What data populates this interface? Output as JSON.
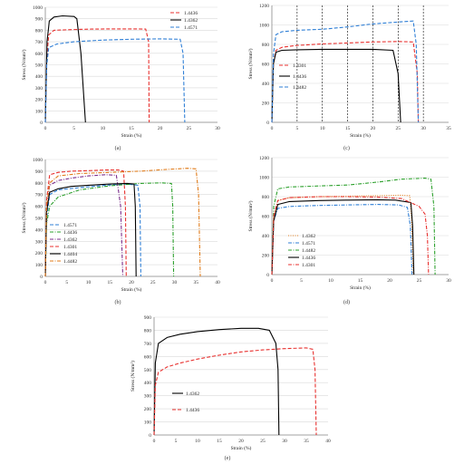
{
  "chart_data": [
    {
      "panel": "a",
      "type": "line",
      "caption": "(a)",
      "xlabel": "Strain (%)",
      "ylabel": "Stress (N/mm²)",
      "xlim": [
        0,
        30
      ],
      "ylim": [
        0,
        1000
      ],
      "xticks": [
        0,
        5,
        10,
        15,
        20,
        25,
        30
      ],
      "yticks": [
        0,
        100,
        200,
        300,
        400,
        500,
        600,
        700,
        800,
        900,
        1000
      ],
      "grid": "horizontal",
      "legend_position": "top-right",
      "series": [
        {
          "name": "1.4436",
          "color": "#e8312f",
          "dash": "dashed",
          "x": [
            0,
            0.25,
            0.6,
            1.5,
            4,
            8,
            12,
            16,
            17.5,
            18,
            18.1
          ],
          "y": [
            0,
            560,
            760,
            800,
            805,
            810,
            812,
            812,
            810,
            700,
            0
          ]
        },
        {
          "name": "1.4362",
          "color": "#000000",
          "dash": "solid",
          "x": [
            0,
            0.3,
            0.7,
            1.5,
            3,
            5,
            5.5,
            6.2,
            7
          ],
          "y": [
            0,
            700,
            880,
            915,
            925,
            920,
            900,
            600,
            0
          ]
        },
        {
          "name": "1.4571",
          "color": "#2f7fd6",
          "dash": "dashed",
          "x": [
            0,
            0.25,
            0.6,
            2,
            5,
            10,
            15,
            20,
            23.5,
            24,
            24.3
          ],
          "y": [
            0,
            500,
            650,
            680,
            700,
            715,
            722,
            725,
            722,
            600,
            0
          ]
        }
      ]
    },
    {
      "panel": "c",
      "type": "line",
      "caption": "(c)",
      "xlabel": "Strain (%)",
      "ylabel": "Stress (N/mm²)",
      "xlim": [
        0,
        35
      ],
      "ylim": [
        0,
        1200
      ],
      "xticks": [
        0,
        5,
        10,
        15,
        20,
        25,
        30,
        35
      ],
      "yticks": [
        0,
        200,
        400,
        600,
        800,
        1000,
        1200
      ],
      "grid": "horizontal",
      "vlines": [
        5,
        10,
        15,
        20,
        25,
        30
      ],
      "legend_position": "center-left",
      "series": [
        {
          "name": "1.4301",
          "color": "#e8312f",
          "dash": "dashed",
          "x": [
            0,
            0.3,
            0.8,
            2,
            5,
            10,
            15,
            20,
            25,
            28,
            28.8,
            29
          ],
          "y": [
            0,
            600,
            740,
            770,
            790,
            805,
            815,
            825,
            830,
            825,
            500,
            0
          ]
        },
        {
          "name": "1.4436",
          "color": "#000000",
          "dash": "solid",
          "x": [
            0,
            0.3,
            0.8,
            2,
            5,
            10,
            15,
            20,
            24,
            25,
            25.5
          ],
          "y": [
            0,
            600,
            720,
            740,
            745,
            750,
            750,
            750,
            740,
            500,
            0
          ]
        },
        {
          "name": "1.4482",
          "color": "#2f7fd6",
          "dash": "dashed",
          "x": [
            0,
            0.3,
            0.8,
            2,
            5,
            10,
            15,
            20,
            25,
            28,
            28.6,
            29
          ],
          "y": [
            0,
            700,
            900,
            930,
            945,
            955,
            980,
            1010,
            1030,
            1040,
            800,
            0
          ]
        }
      ]
    },
    {
      "panel": "b",
      "type": "line",
      "caption": "(b)",
      "xlabel": "Strain (%)",
      "ylabel": "Stress (N/mm²)",
      "xlim": [
        0,
        40
      ],
      "ylim": [
        0,
        1000
      ],
      "xticks": [
        0,
        5,
        10,
        15,
        20,
        25,
        30,
        35,
        40
      ],
      "yticks": [
        0,
        100,
        200,
        300,
        400,
        500,
        600,
        700,
        800,
        900,
        1000
      ],
      "grid": "horizontal",
      "legend_position": "center-left",
      "series": [
        {
          "name": "1.4571",
          "color": "#2f7fd6",
          "dash": "dashed",
          "x": [
            0,
            0.3,
            1,
            3,
            8,
            14,
            19,
            21.5,
            22,
            22.2
          ],
          "y": [
            0,
            500,
            700,
            740,
            760,
            780,
            790,
            780,
            600,
            0
          ]
        },
        {
          "name": "1.4436",
          "color": "#2ca02c",
          "dash": "dashdot",
          "x": [
            0,
            0.3,
            1,
            3,
            8,
            15,
            22,
            27,
            29.3,
            29.6,
            29.8
          ],
          "y": [
            0,
            450,
            600,
            680,
            740,
            775,
            795,
            800,
            795,
            600,
            0
          ]
        },
        {
          "name": "1.4362",
          "color": "#7b2d8b",
          "dash": "dashdot",
          "x": [
            0,
            0.3,
            1,
            3,
            6,
            10,
            14,
            16.5,
            17.5,
            18
          ],
          "y": [
            0,
            600,
            780,
            820,
            840,
            860,
            870,
            865,
            600,
            0
          ]
        },
        {
          "name": "1.4301",
          "color": "#e8312f",
          "dash": "dashed",
          "x": [
            0,
            0.3,
            1,
            3,
            6,
            10,
            14,
            17,
            18.2,
            18.6,
            18.8
          ],
          "y": [
            0,
            650,
            870,
            890,
            900,
            905,
            910,
            910,
            900,
            600,
            0
          ]
        },
        {
          "name": "1.4404",
          "color": "#000000",
          "dash": "solid",
          "x": [
            0,
            0.3,
            1,
            3,
            6,
            10,
            15,
            19,
            20.6,
            20.9,
            21.1
          ],
          "y": [
            0,
            550,
            720,
            750,
            770,
            780,
            790,
            795,
            790,
            600,
            0
          ]
        },
        {
          "name": "1.4482",
          "color": "#e07b1a",
          "dash": "dashdot",
          "x": [
            0,
            0.3,
            1,
            3,
            8,
            15,
            22,
            28,
            33,
            35,
            35.6,
            36
          ],
          "y": [
            0,
            600,
            800,
            860,
            880,
            890,
            900,
            915,
            925,
            920,
            700,
            0
          ]
        }
      ]
    },
    {
      "panel": "d",
      "type": "line",
      "caption": "(d)",
      "xlabel": "Strain (%)",
      "ylabel": "Stress (N/mm²)",
      "xlim": [
        0,
        30
      ],
      "ylim": [
        0,
        1200
      ],
      "xticks": [
        0,
        5,
        10,
        15,
        20,
        25,
        30
      ],
      "yticks": [
        0,
        200,
        400,
        600,
        800,
        1000,
        1200
      ],
      "grid": "horizontal",
      "legend_position": "center-left",
      "series": [
        {
          "name": "1.4362",
          "color": "#e07b1a",
          "dash": "dotted",
          "x": [
            0,
            0.3,
            1,
            3,
            8,
            13,
            18,
            22,
            23.4,
            23.7,
            24
          ],
          "y": [
            0,
            600,
            760,
            790,
            800,
            805,
            810,
            815,
            810,
            600,
            0
          ]
        },
        {
          "name": "1.4571",
          "color": "#2f7fd6",
          "dash": "dashdot",
          "x": [
            0,
            0.3,
            1,
            3,
            8,
            13,
            18,
            21.5,
            23,
            23.5,
            23.8
          ],
          "y": [
            0,
            550,
            680,
            700,
            710,
            715,
            720,
            715,
            690,
            500,
            0
          ]
        },
        {
          "name": "1.4482",
          "color": "#2ca02c",
          "dash": "dashdot",
          "x": [
            0,
            0.3,
            1,
            3,
            8,
            13,
            18,
            22,
            26,
            27,
            27.5,
            27.7
          ],
          "y": [
            0,
            700,
            880,
            900,
            910,
            920,
            950,
            980,
            990,
            980,
            700,
            0
          ]
        },
        {
          "name": "1.4436",
          "color": "#000000",
          "dash": "solid",
          "x": [
            0,
            0.3,
            1,
            3,
            8,
            13,
            18,
            21,
            23.6,
            23.9,
            24.1
          ],
          "y": [
            0,
            550,
            720,
            750,
            760,
            765,
            768,
            765,
            740,
            500,
            0
          ]
        },
        {
          "name": "1.4301",
          "color": "#e8312f",
          "dash": "dashdot",
          "x": [
            0,
            0.3,
            1,
            3,
            8,
            13,
            18,
            22,
            25,
            26,
            26.4,
            26.6
          ],
          "y": [
            0,
            600,
            760,
            790,
            800,
            800,
            795,
            780,
            700,
            620,
            400,
            0
          ]
        }
      ]
    },
    {
      "panel": "e",
      "type": "line",
      "caption": "(e)",
      "xlabel": "Strain (%)",
      "ylabel": "Stress (N/mm²)",
      "xlim": [
        0,
        40
      ],
      "ylim": [
        0,
        900
      ],
      "xticks": [
        0,
        5,
        10,
        15,
        20,
        25,
        30,
        35,
        40
      ],
      "yticks": [
        0,
        100,
        200,
        300,
        400,
        500,
        600,
        700,
        800,
        900
      ],
      "grid": "horizontal",
      "legend_position": "center-left",
      "series": [
        {
          "name": "1.4362",
          "color": "#000000",
          "dash": "solid",
          "x": [
            0,
            0.3,
            1,
            3,
            6,
            10,
            15,
            20,
            24,
            26.5,
            28,
            28.5,
            28.7
          ],
          "y": [
            0,
            550,
            700,
            745,
            770,
            790,
            805,
            815,
            815,
            800,
            700,
            500,
            0
          ]
        },
        {
          "name": "1.4436",
          "color": "#e8312f",
          "dash": "dashed",
          "x": [
            0,
            0.3,
            1,
            3,
            6,
            10,
            15,
            20,
            25,
            30,
            35,
            36.5,
            37,
            37.3
          ],
          "y": [
            0,
            380,
            480,
            520,
            550,
            580,
            610,
            635,
            650,
            660,
            665,
            655,
            500,
            0
          ]
        }
      ]
    }
  ]
}
